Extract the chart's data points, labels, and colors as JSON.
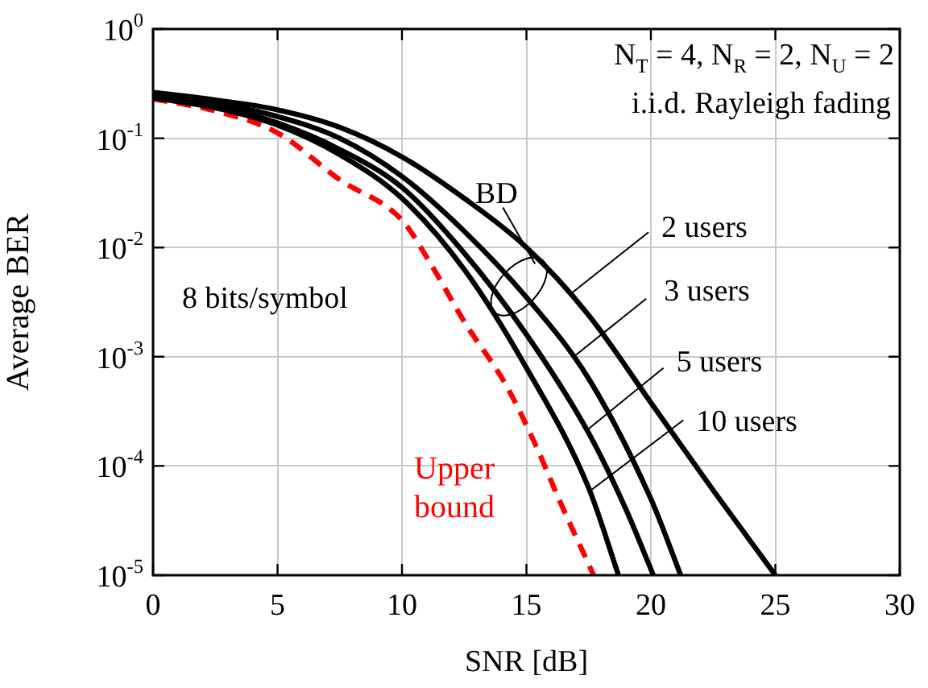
{
  "chart_data": {
    "type": "line",
    "xlabel": "SNR [dB]",
    "ylabel": "Average BER",
    "log": "y",
    "xlim": [
      0,
      30
    ],
    "xticks": [
      0,
      5,
      10,
      15,
      20,
      25,
      30
    ],
    "ylim": [
      1e-05,
      1
    ],
    "yticks": [
      {
        "value": 1,
        "label": "10$^{0}$"
      },
      {
        "value": 0.1,
        "label": "10$^{-1}$"
      },
      {
        "value": 0.01,
        "label": "10$^{-2}$"
      },
      {
        "value": 0.001,
        "label": "10$^{-3}$"
      },
      {
        "value": 0.0001,
        "label": "10$^{-4}$"
      },
      {
        "value": 1e-05,
        "label": "10$^{-5}$"
      }
    ],
    "grid": true,
    "legend": false,
    "marker": "none",
    "series": [
      {
        "color": "#000000",
        "line_style": "solid",
        "x": [
          0,
          2.5,
          5,
          7.5,
          10,
          12.5,
          15,
          17.5,
          20,
          22.5,
          25
        ],
        "values": [
          0.263,
          0.224,
          0.182,
          0.126,
          0.0676,
          0.0282,
          0.01,
          0.0024,
          0.00038,
          6e-05,
          1e-05
        ]
      },
      {
        "color": "#000000",
        "line_style": "solid",
        "x": [
          0,
          2.5,
          5,
          7.5,
          10,
          12.5,
          15,
          17.5,
          20,
          21.2
        ],
        "values": [
          0.251,
          0.209,
          0.158,
          0.1,
          0.0447,
          0.0141,
          0.0035,
          0.00063,
          5e-05,
          1e-05
        ]
      },
      {
        "color": "#000000",
        "line_style": "solid",
        "x": [
          0,
          2.5,
          5,
          7.5,
          10,
          12.5,
          15,
          17.5,
          19,
          20.1
        ],
        "values": [
          0.24,
          0.2,
          0.138,
          0.079,
          0.0355,
          0.0089,
          0.0016,
          0.0002,
          4e-05,
          1e-05
        ]
      },
      {
        "color": "#000000",
        "line_style": "solid",
        "x": [
          0,
          2.5,
          5,
          7.5,
          10,
          12.5,
          15,
          17.5,
          18.7
        ],
        "values": [
          0.234,
          0.19,
          0.132,
          0.0708,
          0.0282,
          0.0063,
          0.00079,
          6.3e-05,
          1e-05
        ]
      },
      {
        "color": "#ff0000",
        "line_style": "dashed",
        "x": [
          0,
          2.5,
          5,
          7.5,
          10,
          11.2,
          12.5,
          14.2,
          15.4,
          16.3,
          17.7
        ],
        "values": [
          0.229,
          0.178,
          0.112,
          0.0417,
          0.0178,
          0.0068,
          0.0021,
          0.00054,
          0.00015,
          5e-05,
          1e-05
        ]
      }
    ],
    "annotations": [
      "N$_{T}$ = 4, N$_{R}$ = 2, N$_{U}$ = 2",
      "i.i.d. Rayleigh fading",
      "8 bits/symbol",
      {
        "text": "BD",
        "x": 14.7,
        "y": 0.0044
      },
      {
        "text": "2 users",
        "x": 16.8,
        "y": 0.0038
      },
      {
        "text": "3 users",
        "x": 16.9,
        "y": 0.001
      },
      {
        "text": "5 users",
        "x": 17.4,
        "y": 0.00021
      },
      {
        "text": "10 users",
        "x": 17.55,
        "y": 5.9e-05
      },
      "Upper bound"
    ]
  }
}
